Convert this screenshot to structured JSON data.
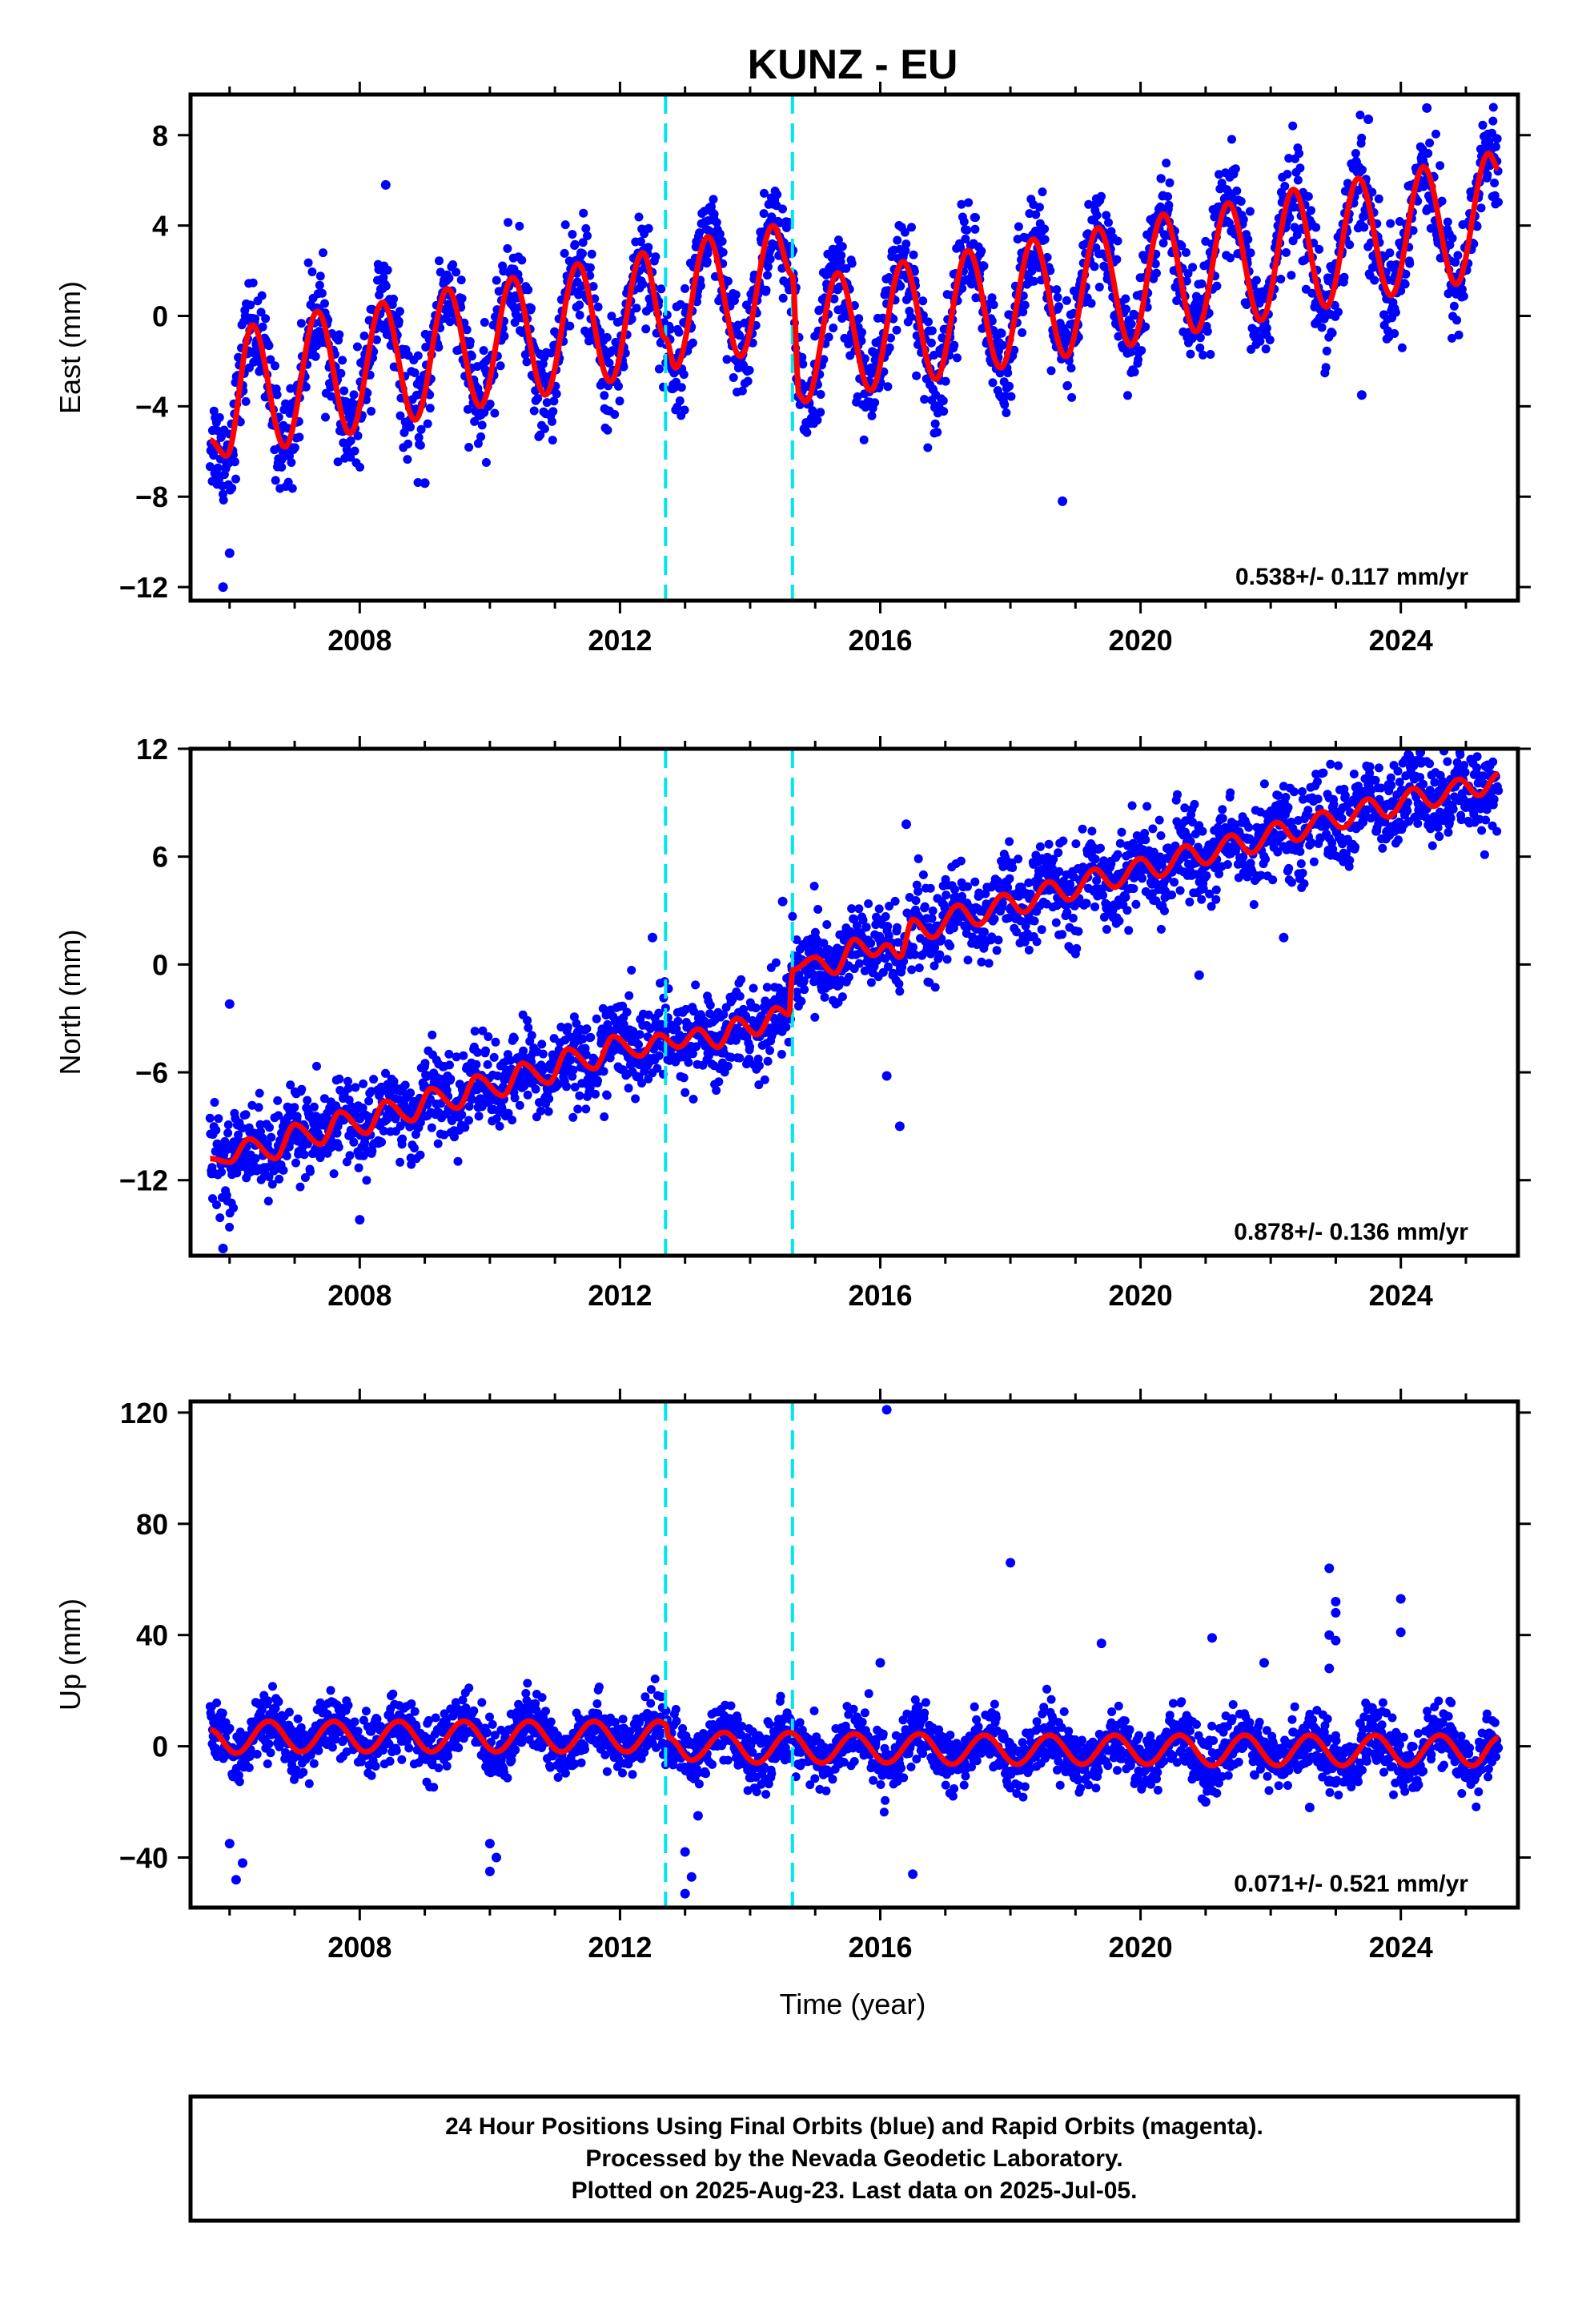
{
  "title": "KUNZ - EU",
  "xlabel": "Time (year)",
  "footer": {
    "line1": "24 Hour Positions Using Final Orbits (blue) and Rapid Orbits (magenta).",
    "line2": "Processed by the Nevada Geodetic Laboratory.",
    "line3": "Plotted on 2025-Aug-23. Last data on 2025-Jul-05."
  },
  "colors": {
    "data": "#0000ff",
    "model": "#ff0000",
    "offset": "#00e5f0",
    "frame": "#000000"
  },
  "chart_data": [
    {
      "type": "scatter",
      "component": "east",
      "ylabel": "East (mm)",
      "xlim": [
        2005.4,
        2025.8
      ],
      "ylim": [
        -12.6,
        9.8
      ],
      "yticks": [
        -12,
        -8,
        -4,
        0,
        4,
        8
      ],
      "xticks": [
        2008,
        2012,
        2016,
        2020,
        2024
      ],
      "rate_label": "0.538+/- 0.117 mm/yr",
      "velocity_mm_per_yr": 0.538,
      "velocity_sigma": 0.117,
      "offsets": [
        2012.7,
        2014.65
      ],
      "data_start": 2005.7,
      "data_end": 2025.5,
      "model_points": [
        [
          2005.7,
          -5.5
        ],
        [
          2005.95,
          -6.2
        ],
        [
          2006.35,
          -0.4
        ],
        [
          2006.85,
          -5.8
        ],
        [
          2007.35,
          0.2
        ],
        [
          2007.85,
          -5.2
        ],
        [
          2008.35,
          0.6
        ],
        [
          2008.85,
          -4.6
        ],
        [
          2009.35,
          1.2
        ],
        [
          2009.85,
          -4.0
        ],
        [
          2010.35,
          1.7
        ],
        [
          2010.85,
          -3.5
        ],
        [
          2011.35,
          2.3
        ],
        [
          2011.85,
          -2.9
        ],
        [
          2012.35,
          2.8
        ],
        [
          2012.7,
          -1.0
        ],
        [
          2012.85,
          -2.3
        ],
        [
          2013.35,
          3.5
        ],
        [
          2013.85,
          -1.8
        ],
        [
          2014.35,
          4.0
        ],
        [
          2014.65,
          1.8
        ],
        [
          2014.75,
          -3.5
        ],
        [
          2014.85,
          -3.8
        ],
        [
          2015.35,
          1.9
        ],
        [
          2015.85,
          -3.3
        ],
        [
          2016.35,
          2.4
        ],
        [
          2016.85,
          -2.8
        ],
        [
          2017.35,
          2.9
        ],
        [
          2017.85,
          -2.3
        ],
        [
          2018.35,
          3.4
        ],
        [
          2018.85,
          -1.8
        ],
        [
          2019.35,
          3.9
        ],
        [
          2019.85,
          -1.3
        ],
        [
          2020.35,
          4.5
        ],
        [
          2020.85,
          -0.7
        ],
        [
          2021.35,
          5.0
        ],
        [
          2021.85,
          -0.2
        ],
        [
          2022.35,
          5.6
        ],
        [
          2022.85,
          0.4
        ],
        [
          2023.35,
          6.1
        ],
        [
          2023.85,
          0.9
        ],
        [
          2024.35,
          6.6
        ],
        [
          2024.85,
          1.4
        ],
        [
          2025.35,
          7.2
        ],
        [
          2025.5,
          6.5
        ]
      ],
      "scatter_spread": 1.5,
      "outliers": [
        [
          2005.9,
          -12.0
        ],
        [
          2006.0,
          -10.5
        ],
        [
          2008.4,
          5.8
        ],
        [
          2018.8,
          -8.2
        ],
        [
          2023.4,
          -3.5
        ],
        [
          2024.4,
          9.2
        ],
        [
          2023.5,
          8.7
        ],
        [
          2009.0,
          -7.4
        ]
      ]
    },
    {
      "type": "scatter",
      "component": "north",
      "ylabel": "North (mm)",
      "xlim": [
        2005.4,
        2025.8
      ],
      "ylim": [
        -16.2,
        12.0
      ],
      "yticks": [
        -12,
        -6,
        0,
        6,
        12
      ],
      "xticks": [
        2008,
        2012,
        2016,
        2020,
        2024
      ],
      "rate_label": "0.878+/- 0.136 mm/yr",
      "velocity_mm_per_yr": 0.878,
      "velocity_sigma": 0.136,
      "offsets": [
        2012.7,
        2014.65
      ],
      "data_start": 2005.7,
      "data_end": 2025.5,
      "model_points": [
        [
          2005.7,
          -10.8
        ],
        [
          2006.0,
          -11.0
        ],
        [
          2006.3,
          -9.7
        ],
        [
          2006.7,
          -10.8
        ],
        [
          2007.0,
          -8.9
        ],
        [
          2007.4,
          -10.0
        ],
        [
          2007.7,
          -8.2
        ],
        [
          2008.1,
          -9.4
        ],
        [
          2008.4,
          -7.6
        ],
        [
          2008.8,
          -8.7
        ],
        [
          2009.1,
          -6.9
        ],
        [
          2009.5,
          -8.0
        ],
        [
          2009.8,
          -6.2
        ],
        [
          2010.2,
          -7.3
        ],
        [
          2010.5,
          -5.5
        ],
        [
          2010.9,
          -6.6
        ],
        [
          2011.2,
          -4.7
        ],
        [
          2011.6,
          -5.8
        ],
        [
          2011.9,
          -4.0
        ],
        [
          2012.3,
          -5.1
        ],
        [
          2012.6,
          -3.9
        ],
        [
          2012.9,
          -4.6
        ],
        [
          2013.2,
          -3.6
        ],
        [
          2013.5,
          -4.6
        ],
        [
          2013.8,
          -3.0
        ],
        [
          2014.1,
          -3.9
        ],
        [
          2014.4,
          -2.4
        ],
        [
          2014.6,
          -2.8
        ],
        [
          2014.65,
          -0.3
        ],
        [
          2015.0,
          0.4
        ],
        [
          2015.3,
          -0.5
        ],
        [
          2015.6,
          1.4
        ],
        [
          2015.9,
          0.5
        ],
        [
          2016.1,
          1.1
        ],
        [
          2016.3,
          0.4
        ],
        [
          2016.5,
          2.5
        ],
        [
          2016.8,
          1.5
        ],
        [
          2017.2,
          3.3
        ],
        [
          2017.5,
          2.2
        ],
        [
          2017.9,
          3.9
        ],
        [
          2018.2,
          2.9
        ],
        [
          2018.6,
          4.6
        ],
        [
          2018.9,
          3.6
        ],
        [
          2019.3,
          5.3
        ],
        [
          2019.6,
          4.3
        ],
        [
          2020.0,
          5.9
        ],
        [
          2020.3,
          4.9
        ],
        [
          2020.7,
          6.6
        ],
        [
          2021.0,
          5.6
        ],
        [
          2021.4,
          7.2
        ],
        [
          2021.7,
          6.2
        ],
        [
          2022.1,
          7.9
        ],
        [
          2022.4,
          6.9
        ],
        [
          2022.8,
          8.5
        ],
        [
          2023.1,
          7.6
        ],
        [
          2023.5,
          9.2
        ],
        [
          2023.8,
          8.2
        ],
        [
          2024.2,
          9.8
        ],
        [
          2024.5,
          8.8
        ],
        [
          2024.9,
          10.3
        ],
        [
          2025.2,
          9.4
        ],
        [
          2025.5,
          10.6
        ]
      ],
      "scatter_spread": 1.6,
      "outliers": [
        [
          2006.0,
          -2.2
        ],
        [
          2008.0,
          -14.2
        ],
        [
          2012.5,
          1.5
        ],
        [
          2014.5,
          3.5
        ],
        [
          2016.3,
          -9.0
        ],
        [
          2016.1,
          -6.2
        ],
        [
          2016.4,
          7.8
        ],
        [
          2020.9,
          -0.6
        ],
        [
          2022.2,
          1.5
        ],
        [
          2024.3,
          11.8
        ],
        [
          2005.9,
          -15.8
        ]
      ]
    },
    {
      "type": "scatter",
      "component": "up",
      "ylabel": "Up (mm)",
      "xlim": [
        2005.4,
        2025.8
      ],
      "ylim": [
        -58,
        124
      ],
      "yticks": [
        -40,
        0,
        40,
        80,
        120
      ],
      "xticks": [
        2008,
        2012,
        2016,
        2020,
        2024
      ],
      "rate_label": "0.071+/- 0.521 mm/yr",
      "velocity_mm_per_yr": 0.071,
      "velocity_sigma": 0.521,
      "offsets": [
        2012.7,
        2014.65
      ],
      "data_start": 2005.7,
      "data_end": 2025.5,
      "model_points": [
        [
          2005.7,
          6.0
        ],
        [
          2006.1,
          -2.5
        ],
        [
          2006.6,
          9.0
        ],
        [
          2007.1,
          -2.0
        ],
        [
          2007.6,
          9.0
        ],
        [
          2008.1,
          -2.0
        ],
        [
          2008.6,
          9.0
        ],
        [
          2009.1,
          -2.0
        ],
        [
          2009.6,
          9.0
        ],
        [
          2010.1,
          -2.0
        ],
        [
          2010.6,
          9.0
        ],
        [
          2011.1,
          -2.0
        ],
        [
          2011.6,
          9.0
        ],
        [
          2012.1,
          -2.0
        ],
        [
          2012.6,
          9.0
        ],
        [
          2012.7,
          8.0
        ],
        [
          2012.75,
          3.0
        ],
        [
          2013.1,
          -5.0
        ],
        [
          2013.6,
          5.0
        ],
        [
          2014.1,
          -6.0
        ],
        [
          2014.6,
          5.0
        ],
        [
          2015.1,
          -6.0
        ],
        [
          2015.6,
          4.5
        ],
        [
          2016.1,
          -6.0
        ],
        [
          2016.6,
          4.5
        ],
        [
          2017.1,
          -6.5
        ],
        [
          2017.6,
          4.0
        ],
        [
          2018.1,
          -6.5
        ],
        [
          2018.6,
          4.0
        ],
        [
          2019.1,
          -6.5
        ],
        [
          2019.6,
          4.0
        ],
        [
          2020.1,
          -6.5
        ],
        [
          2020.6,
          4.0
        ],
        [
          2021.1,
          -7.0
        ],
        [
          2021.6,
          4.0
        ],
        [
          2022.1,
          -7.0
        ],
        [
          2022.6,
          4.0
        ],
        [
          2023.1,
          -7.0
        ],
        [
          2023.6,
          4.0
        ],
        [
          2024.1,
          -7.0
        ],
        [
          2024.6,
          4.0
        ],
        [
          2025.1,
          -7.0
        ],
        [
          2025.5,
          3.0
        ]
      ],
      "scatter_spread": 7,
      "outliers": [
        [
          2016.1,
          121.0
        ],
        [
          2018.0,
          66.0
        ],
        [
          2022.9,
          64.0
        ],
        [
          2023.0,
          52.0
        ],
        [
          2023.0,
          48.0
        ],
        [
          2024.0,
          53.0
        ],
        [
          2024.0,
          41.0
        ],
        [
          2022.9,
          40.0
        ],
        [
          2021.1,
          39.0
        ],
        [
          2019.4,
          37.0
        ],
        [
          2021.9,
          30.0
        ],
        [
          2016.0,
          30.0
        ],
        [
          2016.5,
          -46.0
        ],
        [
          2013.0,
          -53.0
        ],
        [
          2013.1,
          -47.0
        ],
        [
          2013.0,
          -38.0
        ],
        [
          2013.2,
          -25.0
        ],
        [
          2006.1,
          -48.0
        ],
        [
          2006.2,
          -42.0
        ],
        [
          2006.0,
          -35.0
        ],
        [
          2010.0,
          -45.0
        ],
        [
          2010.1,
          -40.0
        ],
        [
          2010.0,
          -35.0
        ],
        [
          2022.6,
          -22.0
        ],
        [
          2023.0,
          38.0
        ],
        [
          2022.9,
          28.0
        ],
        [
          2021.0,
          -20.0
        ]
      ]
    }
  ]
}
